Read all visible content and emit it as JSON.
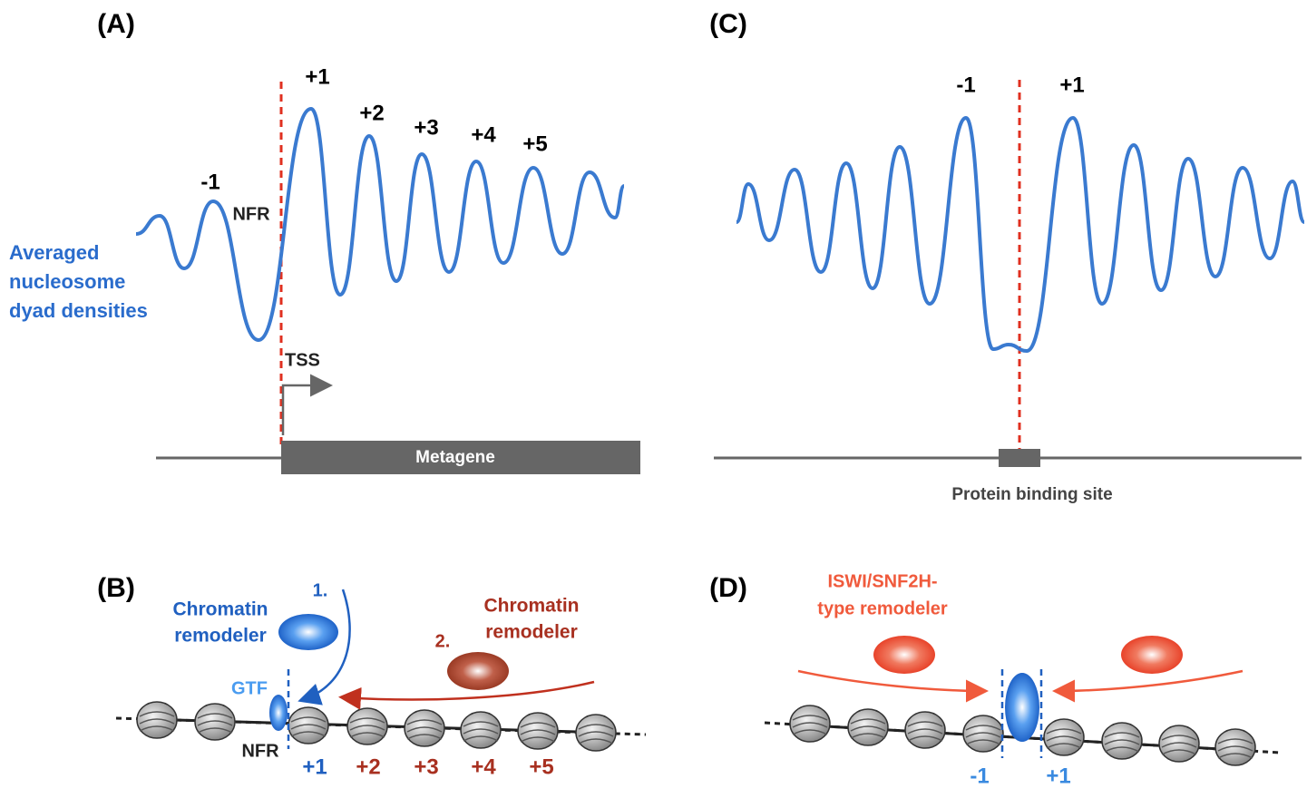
{
  "panel_a": {
    "label": "(A)",
    "peak_minus": "-1",
    "peaks": [
      "+1",
      "+2",
      "+3",
      "+4",
      "+5"
    ],
    "nfr": "NFR",
    "ylabel": [
      "Averaged",
      "nucleosome",
      "dyad densities"
    ],
    "tss": "TSS",
    "metagene": "Metagene"
  },
  "panel_c": {
    "label": "(C)",
    "peaks": [
      "-1",
      "+1"
    ],
    "site": "Protein binding site"
  },
  "panel_b": {
    "label": "(B)",
    "step1": "1.",
    "remodeler1": [
      "Chromatin",
      "remodeler"
    ],
    "step2": "2.",
    "remodeler2": [
      "Chromatin",
      "remodeler"
    ],
    "gtf": "GTF",
    "nfr": "NFR",
    "positions": [
      "+1",
      "+2",
      "+3",
      "+4",
      "+5"
    ]
  },
  "panel_d": {
    "label": "(D)",
    "remodeler": [
      "ISWI/SNF2H-",
      "type remodeler"
    ],
    "positions": [
      "-1",
      "+1"
    ]
  }
}
